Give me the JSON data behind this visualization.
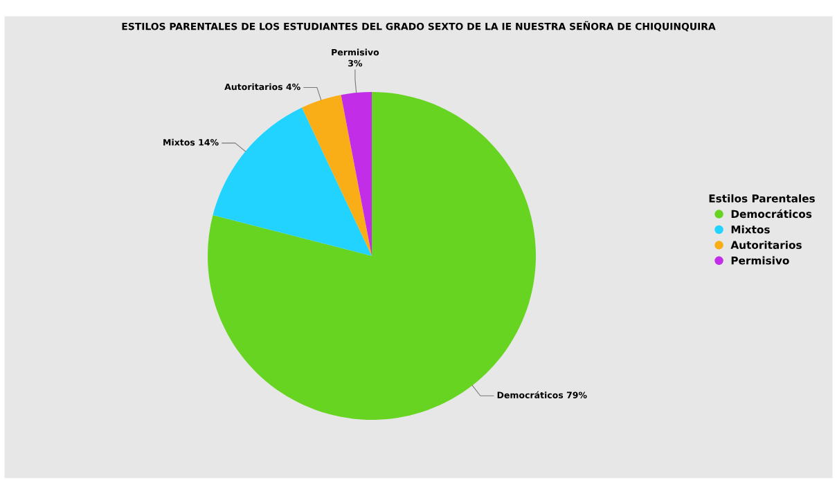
{
  "chart_data": {
    "type": "pie",
    "title": "ESTILOS PARENTALES DE LOS ESTUDIANTES DEL GRADO SEXTO DE LA IE NUESTRA SEÑORA DE CHIQUINQUIRA",
    "categories": [
      "Democráticos",
      "Mixtos",
      "Autoritarios",
      "Permisivo"
    ],
    "values": [
      79,
      14,
      4,
      3
    ],
    "colors": [
      "#66d420",
      "#22d3ff",
      "#f9ae17",
      "#c22ee8"
    ],
    "value_labels": [
      "Democráticos 79%",
      "Mixtos 14%",
      "Autoritarios 4%",
      "Permisivo\n3%"
    ],
    "legend_title": "Estilos Parentales",
    "legend": "right"
  }
}
